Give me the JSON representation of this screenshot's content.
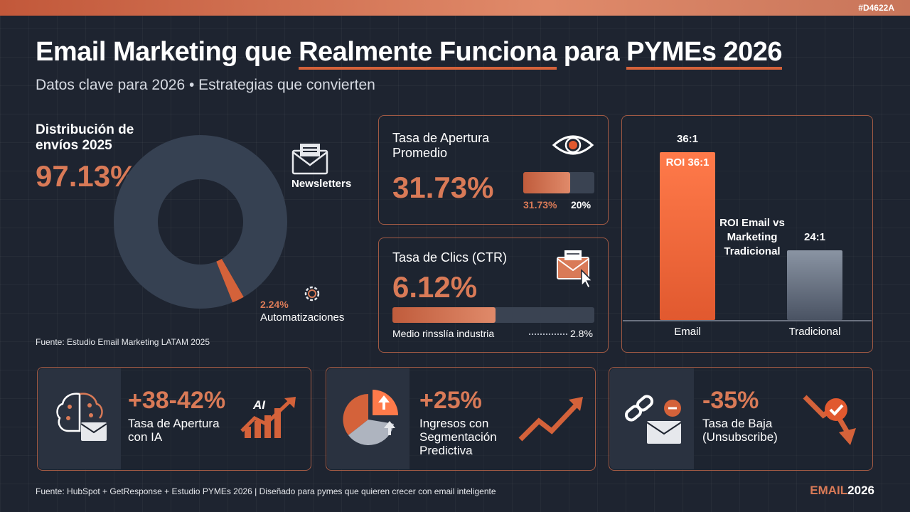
{
  "header": {
    "hex_code": "#D4622A",
    "title_pre": "Email Marketing que ",
    "title_highlight1": "Realmente Funciona",
    "title_mid": " para ",
    "title_highlight2": "PYMEs 2026",
    "subtitle": "Datos clave para 2026 • Estrategias que convierten"
  },
  "colors": {
    "accent": "#d4623a",
    "background": "#1e2430",
    "bar_gray": "#4a5363",
    "donut_main": "#364152"
  },
  "chart_data": [
    {
      "type": "pie",
      "title": "Distribución de envíos 2025",
      "headline": "97.13%",
      "slices": [
        {
          "label": "Newsletters",
          "value": 97.13,
          "icon": "envelope-icon"
        },
        {
          "label": "Automatizaciones",
          "value": 2.24,
          "display": "2.24%",
          "icon": "gear-icon"
        }
      ],
      "source": "Fuente: Estudio Email Marketing LATAM 2025"
    },
    {
      "type": "bar",
      "title": "Tasa de Apertura Promedio",
      "headline": "31.73%",
      "values": [
        31.73,
        20
      ],
      "value_labels": [
        "31.73%",
        "20%"
      ],
      "icon": "eye-icon"
    },
    {
      "type": "bar",
      "title": "Tasa de Clics (CTR)",
      "headline": "6.12%",
      "values": [
        6.12,
        2.8
      ],
      "footer_label": "Medio rinsslía industria",
      "benchmark_label": "2.8%",
      "icon": "envelope-click-icon"
    },
    {
      "type": "bar",
      "title": "ROI Email vs Marketing Tradicional",
      "categories": [
        "Email",
        "Tradicional"
      ],
      "values": [
        36,
        24
      ],
      "value_labels": [
        "36:1",
        "24:1"
      ],
      "inner_label": "ROI 36:1"
    }
  ],
  "bottom_cards": [
    {
      "value": "+38-42%",
      "label": "Tasa de Apertura con IA",
      "icon": "brain-envelope-icon",
      "badge": "AI"
    },
    {
      "value": "+25%",
      "label": "Ingresos con Segmentación Predictiva",
      "icon": "pie-segment-icon"
    },
    {
      "value": "-35%",
      "label": "Tasa de Baja (Unsubscribe)",
      "icon": "broken-link-envelope-icon"
    }
  ],
  "footer": {
    "source": "Fuente: HubSpot + GetResponse + Estudio PYMEs 2026 | Diseñado para pymes que quieren crecer con email inteligente",
    "brand_a": "EMAIL",
    "brand_b": "2026"
  }
}
